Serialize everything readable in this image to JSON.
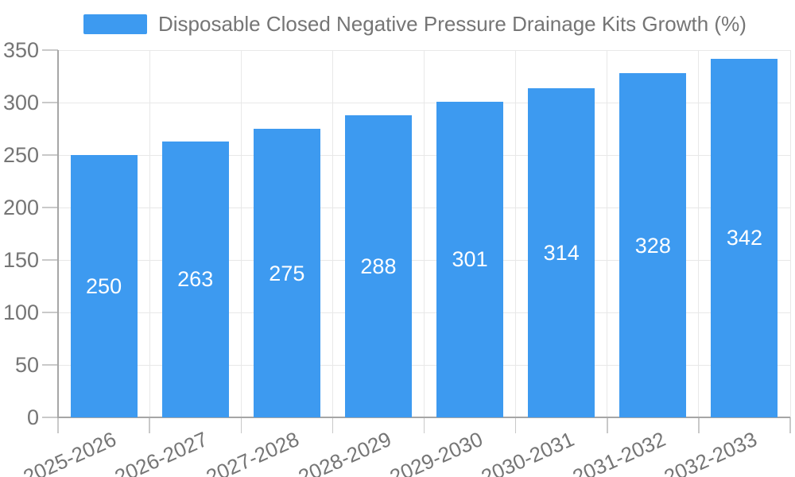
{
  "chart_data": {
    "type": "bar",
    "legend_label": "Disposable Closed Negative Pressure Drainage Kits Growth (%)",
    "categories": [
      "2025-2026",
      "2026-2027",
      "2027-2028",
      "2028-2029",
      "2029-2030",
      "2030-2031",
      "2031-2032",
      "2032-2033"
    ],
    "values": [
      250,
      263,
      275,
      288,
      301,
      314,
      328,
      342
    ],
    "bar_value_labels": [
      "250",
      "263",
      "275",
      "288",
      "301",
      "314",
      "328",
      "342"
    ],
    "title": "",
    "xlabel": "",
    "ylabel": "",
    "ylim": [
      0,
      350
    ],
    "yticks": [
      0,
      50,
      100,
      150,
      200,
      250,
      300,
      350
    ],
    "grid": true,
    "legend_position": "top-center",
    "bar_label_position": "inside-middle",
    "x_label_rotation_deg": -24,
    "colors": {
      "bar": "#3D9AF0",
      "bar_label_text": "#FFFFFF",
      "axis_text": "#757575",
      "legend_text": "#757575",
      "gridline": "#E8E8E8",
      "tick": "#C9C9C9",
      "axis_line": "#A6A6A6",
      "background": "#FFFFFF"
    }
  }
}
